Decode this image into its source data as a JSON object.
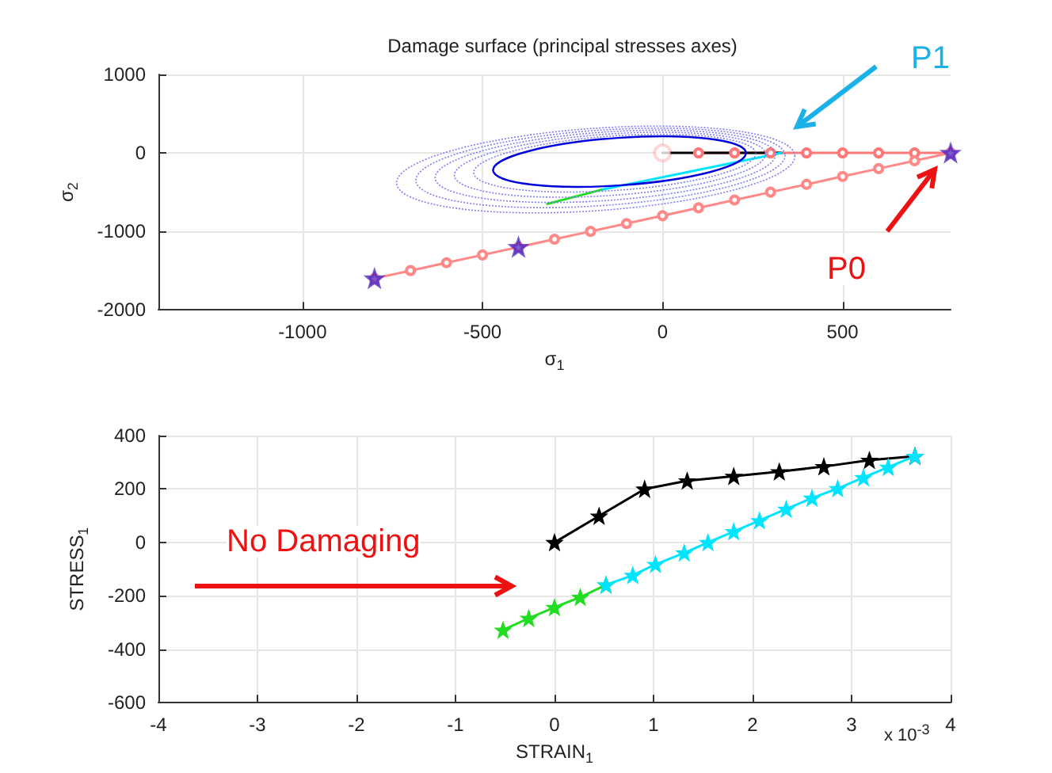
{
  "chart_data": [
    {
      "type": "line",
      "title": "Damage surface (principal stresses axes)",
      "xlabel": "σ$_{1}$",
      "ylabel": "σ$_{2}$",
      "xlim": [
        -1400,
        800
      ],
      "xticks": [
        -1000,
        -500,
        0,
        500
      ],
      "ylim": [
        -2000,
        1000
      ],
      "yticks": [
        -2000,
        -1000,
        0,
        1000
      ],
      "grid": true,
      "annotations": [
        "P1",
        "P0"
      ],
      "series": [
        {
          "color": "#ff7777",
          "marker": "circle",
          "line_style": "solid",
          "x": [
            100,
            200,
            300,
            400,
            500,
            600,
            700,
            800
          ],
          "values": [
            0,
            0,
            0,
            0,
            0,
            0,
            0,
            0
          ]
        },
        {
          "color": "#ff8888",
          "marker": "circle",
          "line_style": "solid",
          "x": [
            800,
            700,
            600,
            500,
            400,
            300,
            200,
            100,
            0,
            -100,
            -200,
            -300,
            -400,
            -500,
            -600,
            -700,
            -800
          ],
          "values": [
            0,
            -100,
            -200,
            -300,
            -400,
            -500,
            -600,
            -700,
            -800,
            -900,
            -1000,
            -1100,
            -1200,
            -1300,
            -1400,
            -1500,
            -1600
          ]
        },
        {
          "color": "#000000",
          "marker": "none",
          "line_style": "solid",
          "x": [
            0,
            330
          ],
          "values": [
            0,
            0
          ]
        },
        {
          "color": "#00e5ff",
          "marker": "none",
          "line_style": "solid",
          "x": [
            330,
            -170
          ],
          "values": [
            0,
            -470
          ]
        },
        {
          "color": "#22dd22",
          "marker": "none",
          "line_style": "solid",
          "x": [
            -170,
            -320
          ],
          "values": [
            -470,
            -650
          ]
        },
        {
          "type": "scatter",
          "color": "#ff3333",
          "marker": "circle",
          "x": [
            0
          ],
          "values": [
            0
          ]
        },
        {
          "type": "scatter",
          "color": "#5a2fc4",
          "marker": "star",
          "x": [
            800,
            -400,
            -800
          ],
          "values": [
            0,
            -1200,
            -1600
          ]
        }
      ]
    },
    {
      "type": "line",
      "xlabel": "STRAIN$_{1}$",
      "ylabel": "STRESS$_{1}$",
      "xlim": [
        -4,
        4
      ],
      "xticks": [
        -4,
        -3,
        -2,
        -1,
        0,
        1,
        2,
        3,
        4
      ],
      "ylim": [
        -600,
        400
      ],
      "yticks": [
        -600,
        -400,
        -200,
        0,
        200,
        400
      ],
      "grid": true,
      "marker": "star",
      "annotations": [
        "No Damaging",
        "x 10$^{-3}$"
      ],
      "series": [
        {
          "color": "#000000",
          "x": [
            0,
            0.45,
            0.91,
            1.34,
            1.81,
            2.27,
            2.72,
            3.18,
            3.64
          ],
          "values": [
            0,
            99,
            200,
            231,
            248,
            265,
            284,
            308,
            323
          ]
        },
        {
          "color": "#22dd22",
          "x": [
            -0.52,
            -0.26,
            0,
            0.26,
            0.52
          ],
          "values": [
            -328,
            -284,
            -243,
            -205,
            -159
          ]
        },
        {
          "color": "#00e5ff",
          "x": [
            0.52,
            0.79,
            1.02,
            1.31,
            1.55,
            1.81,
            2.07,
            2.34,
            2.6,
            2.86,
            3.12,
            3.37,
            3.64
          ],
          "values": [
            -159,
            -123,
            -82,
            -39,
            0,
            41,
            82,
            125,
            166,
            202,
            243,
            282,
            323
          ]
        }
      ]
    }
  ]
}
